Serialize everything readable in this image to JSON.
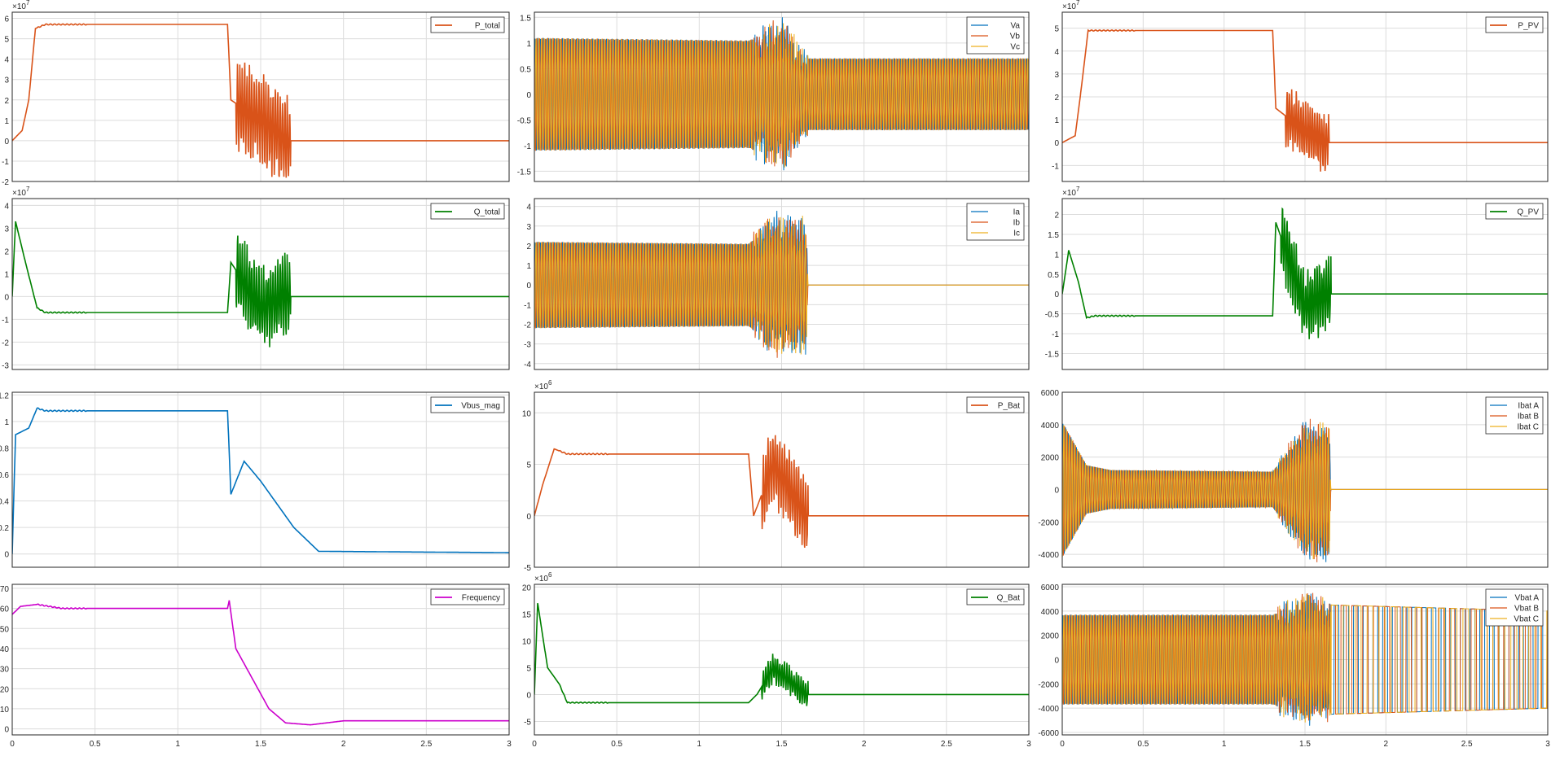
{
  "charts": [
    {
      "id": "p-total",
      "type": "line",
      "xlim": [
        0,
        3
      ],
      "ylim": [
        -2,
        6.3
      ],
      "yticks": [
        -2,
        -1,
        0,
        1,
        2,
        3,
        4,
        5,
        6
      ],
      "ytick_labels": [
        "-2",
        "-1",
        "0",
        "1",
        "2",
        "3",
        "4",
        "5",
        "6"
      ],
      "exponent": "×10",
      "exponent_power": "7",
      "grid": true,
      "legend": "top-right",
      "series": [
        {
          "name": "P_total",
          "color": "#D95319",
          "shape": "ramp",
          "data": [
            [
              0,
              0
            ],
            [
              0.06,
              0.5
            ],
            [
              0.1,
              2
            ],
            [
              0.14,
              5.5
            ],
            [
              0.2,
              5.7
            ],
            [
              0.5,
              5.7
            ],
            [
              1.3,
              5.7
            ],
            [
              1.32,
              2
            ],
            [
              1.5,
              1
            ],
            [
              1.65,
              0
            ],
            [
              3,
              0
            ]
          ],
          "osc": [
            [
              1.35,
              1.68,
              2.5
            ]
          ]
        }
      ]
    },
    {
      "id": "vabc",
      "type": "line",
      "xlim": [
        0,
        3
      ],
      "ylim": [
        -1.7,
        1.6
      ],
      "yticks": [
        -1.5,
        -1,
        -0.5,
        0,
        0.5,
        1,
        1.5
      ],
      "ytick_labels": [
        "-1.5",
        "-1",
        "-0.5",
        "0",
        "0.5",
        "1",
        "1.5"
      ],
      "grid": true,
      "legend": "top-right",
      "series": [
        {
          "name": "Va",
          "color": "#0072BD",
          "shape": "sine"
        },
        {
          "name": "Vb",
          "color": "#D95319",
          "shape": "sine"
        },
        {
          "name": "Vc",
          "color": "#EDB120",
          "shape": "sine"
        }
      ],
      "envelope": [
        [
          0,
          1.1
        ],
        [
          1.3,
          1.05
        ],
        [
          1.5,
          1.3
        ],
        [
          1.65,
          0.7
        ],
        [
          3,
          0.7
        ]
      ]
    },
    {
      "id": "p-pv",
      "type": "line",
      "xlim": [
        0,
        3
      ],
      "ylim": [
        -1.7,
        5.7
      ],
      "yticks": [
        -1,
        0,
        1,
        2,
        3,
        4,
        5
      ],
      "ytick_labels": [
        "-1",
        "0",
        "1",
        "2",
        "3",
        "4",
        "5"
      ],
      "exponent": "×10",
      "exponent_power": "7",
      "grid": true,
      "legend": "top-right",
      "series": [
        {
          "name": "P_PV",
          "color": "#D95319",
          "shape": "ramp",
          "data": [
            [
              0,
              0
            ],
            [
              0.08,
              0.3
            ],
            [
              0.12,
              2.5
            ],
            [
              0.16,
              4.9
            ],
            [
              0.2,
              4.9
            ],
            [
              1.3,
              4.9
            ],
            [
              1.32,
              1.5
            ],
            [
              1.5,
              0.5
            ],
            [
              1.65,
              0
            ],
            [
              3,
              0
            ]
          ],
          "osc": [
            [
              1.38,
              1.65,
              1.5
            ]
          ]
        }
      ]
    },
    {
      "id": "q-total",
      "type": "line",
      "xlim": [
        0,
        3
      ],
      "ylim": [
        -3.2,
        4.3
      ],
      "yticks": [
        -3,
        -2,
        -1,
        0,
        1,
        2,
        3,
        4
      ],
      "ytick_labels": [
        "-3",
        "-2",
        "-1",
        "0",
        "1",
        "2",
        "3",
        "4"
      ],
      "exponent": "×10",
      "exponent_power": "7",
      "grid": true,
      "legend": "top-right",
      "series": [
        {
          "name": "Q_total",
          "color": "#008000",
          "shape": "ramp",
          "data": [
            [
              0,
              0
            ],
            [
              0.02,
              3.3
            ],
            [
              0.08,
              1.5
            ],
            [
              0.15,
              -0.5
            ],
            [
              0.2,
              -0.7
            ],
            [
              1.3,
              -0.7
            ],
            [
              1.32,
              1.5
            ],
            [
              1.5,
              -0.5
            ],
            [
              1.65,
              0
            ],
            [
              3,
              0
            ]
          ],
          "osc": [
            [
              1.35,
              1.68,
              2.0
            ]
          ]
        }
      ]
    },
    {
      "id": "iabc",
      "type": "line",
      "xlim": [
        0,
        3
      ],
      "ylim": [
        -4.3,
        4.4
      ],
      "yticks": [
        -4,
        -3,
        -2,
        -1,
        0,
        1,
        2,
        3,
        4
      ],
      "ytick_labels": [
        "-4",
        "-3",
        "-2",
        "-1",
        "0",
        "1",
        "2",
        "3",
        "4"
      ],
      "grid": true,
      "legend": "top-right",
      "series": [
        {
          "name": "Ia",
          "color": "#0072BD",
          "shape": "sine"
        },
        {
          "name": "Ib",
          "color": "#D95319",
          "shape": "sine"
        },
        {
          "name": "Ic",
          "color": "#EDB120",
          "shape": "sine"
        }
      ],
      "envelope": [
        [
          0,
          2.2
        ],
        [
          1.3,
          2.1
        ],
        [
          1.45,
          3.2
        ],
        [
          1.65,
          3.0
        ],
        [
          1.66,
          0
        ],
        [
          3,
          0
        ]
      ]
    },
    {
      "id": "q-pv",
      "type": "line",
      "xlim": [
        0,
        3
      ],
      "ylim": [
        -1.9,
        2.4
      ],
      "yticks": [
        -1.5,
        -1,
        -0.5,
        0,
        0.5,
        1,
        1.5,
        2
      ],
      "ytick_labels": [
        "-1.5",
        "-1",
        "-0.5",
        "0",
        "0.5",
        "1",
        "1.5",
        "2"
      ],
      "exponent": "×10",
      "exponent_power": "7",
      "grid": true,
      "legend": "top-right",
      "series": [
        {
          "name": "Q_PV",
          "color": "#008000",
          "shape": "ramp",
          "data": [
            [
              0,
              0
            ],
            [
              0.04,
              1.1
            ],
            [
              0.1,
              0.3
            ],
            [
              0.15,
              -0.6
            ],
            [
              0.2,
              -0.55
            ],
            [
              1.3,
              -0.55
            ],
            [
              1.32,
              1.8
            ],
            [
              1.5,
              -0.3
            ],
            [
              1.65,
              0
            ],
            [
              3,
              0
            ]
          ],
          "osc": [
            [
              1.35,
              1.66,
              1.0
            ]
          ]
        }
      ]
    },
    {
      "id": "vbus-mag",
      "type": "line",
      "xlim": [
        0,
        3
      ],
      "ylim": [
        -0.1,
        1.22
      ],
      "yticks": [
        0,
        0.2,
        0.4,
        0.6,
        0.8,
        1,
        1.2
      ],
      "ytick_labels": [
        "0",
        "0.2",
        "0.4",
        "0.6",
        "0.8",
        "1",
        "1.2"
      ],
      "grid": true,
      "legend": "top-right",
      "series": [
        {
          "name": "Vbus_mag",
          "color": "#0072BD",
          "shape": "ramp",
          "data": [
            [
              0,
              0
            ],
            [
              0.02,
              0.9
            ],
            [
              0.1,
              0.95
            ],
            [
              0.15,
              1.1
            ],
            [
              0.2,
              1.08
            ],
            [
              1.3,
              1.08
            ],
            [
              1.32,
              0.45
            ],
            [
              1.4,
              0.7
            ],
            [
              1.5,
              0.55
            ],
            [
              1.7,
              0.2
            ],
            [
              1.85,
              0.02
            ],
            [
              3,
              0.01
            ]
          ]
        }
      ]
    },
    {
      "id": "p-bat",
      "type": "line",
      "xlim": [
        0,
        3
      ],
      "ylim": [
        -5,
        12
      ],
      "yticks": [
        -5,
        0,
        5,
        10
      ],
      "ytick_labels": [
        "-5",
        "0",
        "5",
        "10"
      ],
      "exponent": "×10",
      "exponent_power": "6",
      "grid": true,
      "legend": "top-right",
      "series": [
        {
          "name": "P_Bat",
          "color": "#D95319",
          "shape": "ramp",
          "data": [
            [
              0,
              0
            ],
            [
              0.05,
              3
            ],
            [
              0.12,
              6.5
            ],
            [
              0.2,
              6
            ],
            [
              1.3,
              6
            ],
            [
              1.33,
              0
            ],
            [
              1.45,
              5
            ],
            [
              1.65,
              0
            ],
            [
              3,
              0
            ]
          ],
          "osc": [
            [
              1.38,
              1.66,
              4.0
            ]
          ]
        }
      ]
    },
    {
      "id": "ibat",
      "type": "line",
      "xlim": [
        0,
        3
      ],
      "ylim": [
        -4800,
        6000
      ],
      "yticks": [
        -4000,
        -2000,
        0,
        2000,
        4000,
        6000
      ],
      "ytick_labels": [
        "-4000",
        "-2000",
        "0",
        "2000",
        "4000",
        "6000"
      ],
      "grid": true,
      "legend": "top-right",
      "series": [
        {
          "name": "Ibat A",
          "color": "#0072BD",
          "shape": "sine"
        },
        {
          "name": "Ibat B",
          "color": "#D95319",
          "shape": "sine"
        },
        {
          "name": "Ibat C",
          "color": "#EDB120",
          "shape": "sine"
        }
      ],
      "envelope": [
        [
          0,
          4200
        ],
        [
          0.15,
          1500
        ],
        [
          0.3,
          1200
        ],
        [
          1.3,
          1100
        ],
        [
          1.5,
          3800
        ],
        [
          1.65,
          3800
        ],
        [
          1.66,
          0
        ],
        [
          3,
          0
        ]
      ]
    },
    {
      "id": "frequency",
      "type": "line",
      "xlim": [
        0,
        3
      ],
      "ylim": [
        -3,
        72
      ],
      "yticks": [
        0,
        10,
        20,
        30,
        40,
        50,
        60,
        70
      ],
      "ytick_labels": [
        "0",
        "10",
        "20",
        "30",
        "40",
        "50",
        "60",
        "70"
      ],
      "xticks": [
        0,
        0.5,
        1,
        1.5,
        2,
        2.5,
        3
      ],
      "xtick_labels": [
        "0",
        "0.5",
        "1",
        "1.5",
        "2",
        "2.5",
        "3"
      ],
      "grid": true,
      "legend": "top-right",
      "series": [
        {
          "name": "Frequency",
          "color": "#CC00CC",
          "shape": "ramp",
          "data": [
            [
              0,
              57
            ],
            [
              0.05,
              61
            ],
            [
              0.15,
              62
            ],
            [
              0.3,
              60
            ],
            [
              1.3,
              60
            ],
            [
              1.31,
              64
            ],
            [
              1.35,
              40
            ],
            [
              1.45,
              25
            ],
            [
              1.55,
              10
            ],
            [
              1.65,
              3
            ],
            [
              1.8,
              2
            ],
            [
              2,
              4
            ],
            [
              3,
              4
            ]
          ]
        }
      ]
    },
    {
      "id": "q-bat",
      "type": "line",
      "xlim": [
        0,
        3
      ],
      "ylim": [
        -7.5,
        20.5
      ],
      "yticks": [
        -5,
        0,
        5,
        10,
        15,
        20
      ],
      "ytick_labels": [
        "-5",
        "0",
        "5",
        "10",
        "15",
        "20"
      ],
      "xticks": [
        0,
        0.5,
        1,
        1.5,
        2,
        2.5,
        3
      ],
      "xtick_labels": [
        "0",
        "0.5",
        "1",
        "1.5",
        "2",
        "2.5",
        "3"
      ],
      "exponent": "×10",
      "exponent_power": "6",
      "grid": true,
      "legend": "top-right",
      "series": [
        {
          "name": "Q_Bat",
          "color": "#008000",
          "shape": "ramp",
          "data": [
            [
              0,
              0
            ],
            [
              0.02,
              17
            ],
            [
              0.08,
              5
            ],
            [
              0.15,
              2
            ],
            [
              0.2,
              -1.5
            ],
            [
              1.3,
              -1.5
            ],
            [
              1.35,
              0
            ],
            [
              1.45,
              5
            ],
            [
              1.65,
              0
            ],
            [
              3,
              0
            ]
          ],
          "osc": [
            [
              1.38,
              1.66,
              3.0
            ]
          ]
        }
      ]
    },
    {
      "id": "vbat",
      "type": "line",
      "xlim": [
        0,
        3
      ],
      "ylim": [
        -6200,
        6200
      ],
      "yticks": [
        -6000,
        -4000,
        -2000,
        0,
        2000,
        4000,
        6000
      ],
      "ytick_labels": [
        "-6000",
        "-4000",
        "-2000",
        "0",
        "2000",
        "4000",
        "6000"
      ],
      "xticks": [
        0,
        0.5,
        1,
        1.5,
        2,
        2.5,
        3
      ],
      "xtick_labels": [
        "0",
        "0.5",
        "1",
        "1.5",
        "2",
        "2.5",
        "3"
      ],
      "grid": true,
      "legend": "top-right",
      "series": [
        {
          "name": "Vbat A",
          "color": "#0072BD",
          "shape": "sine"
        },
        {
          "name": "Vbat B",
          "color": "#D95319",
          "shape": "sine"
        },
        {
          "name": "Vbat C",
          "color": "#EDB120",
          "shape": "sine"
        }
      ],
      "envelope": [
        [
          0,
          3700
        ],
        [
          1.3,
          3700
        ],
        [
          1.5,
          4800
        ],
        [
          1.65,
          4500
        ],
        [
          3,
          4000
        ]
      ]
    }
  ]
}
